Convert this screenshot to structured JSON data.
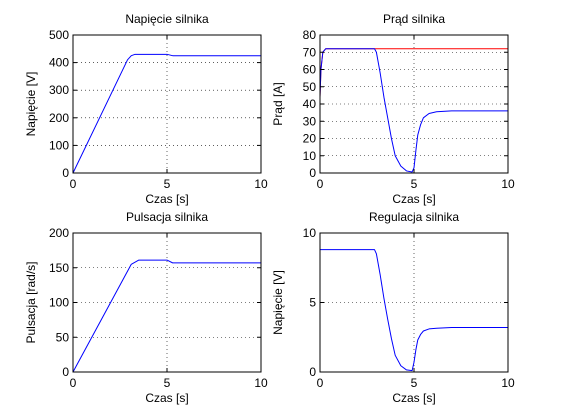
{
  "chart_data": [
    {
      "type": "line",
      "title": "Napięcie silnika",
      "xlabel": "Czas [s]",
      "ylabel": "Napięcie [V]",
      "xlim": [
        0,
        10
      ],
      "ylim": [
        0,
        500
      ],
      "xticks": [
        "0",
        "5",
        "10"
      ],
      "yticks": [
        "0",
        "100",
        "200",
        "300",
        "400",
        "500"
      ],
      "grid": true,
      "series": [
        {
          "color": "#0000ff",
          "x": [
            0,
            2.9,
            3.1,
            3.3,
            5.0,
            5.3,
            10
          ],
          "y": [
            0,
            410,
            425,
            430,
            430,
            425,
            425
          ]
        }
      ]
    },
    {
      "type": "line",
      "title": "Prąd silnika",
      "xlabel": "Czas [s]",
      "ylabel": "Prąd [A]",
      "xlim": [
        0,
        10
      ],
      "ylim": [
        0,
        80
      ],
      "xticks": [
        "0",
        "5",
        "10"
      ],
      "yticks": [
        "0",
        "10",
        "20",
        "30",
        "40",
        "50",
        "60",
        "70",
        "80"
      ],
      "grid": true,
      "series": [
        {
          "color": "#ff0000",
          "x": [
            0,
            0.05,
            0.15,
            0.3,
            10
          ],
          "y": [
            44,
            60,
            70,
            72,
            72
          ]
        },
        {
          "color": "#0000ff",
          "x": [
            0,
            0.05,
            0.15,
            0.3,
            2.9,
            3.0,
            3.2,
            3.4,
            3.6,
            3.8,
            4.0,
            4.3,
            4.6,
            4.9,
            5.0,
            5.1,
            5.2,
            5.35,
            5.5,
            5.8,
            6.2,
            7.0,
            10
          ],
          "y": [
            44,
            60,
            70,
            72,
            72,
            70,
            58,
            44,
            32,
            20,
            10,
            4,
            1.2,
            0.6,
            3,
            13,
            22,
            28,
            32,
            34.5,
            35.5,
            36,
            36
          ]
        }
      ]
    },
    {
      "type": "line",
      "title": "Pulsacja silnika",
      "xlabel": "Czas [s]",
      "ylabel": "Pulsacja [rad/s]",
      "xlim": [
        0,
        10
      ],
      "ylim": [
        0,
        200
      ],
      "xticks": [
        "0",
        "5",
        "10"
      ],
      "yticks": [
        "0",
        "50",
        "100",
        "150",
        "200"
      ],
      "grid": true,
      "series": [
        {
          "color": "#0000ff",
          "x": [
            0,
            3.1,
            3.5,
            5.0,
            5.3,
            10
          ],
          "y": [
            0,
            155,
            161,
            161,
            157,
            157
          ]
        }
      ]
    },
    {
      "type": "line",
      "title": "Regulacja silnika",
      "xlabel": "Czas [s]",
      "ylabel": "Napięcie [V]",
      "xlim": [
        0,
        10
      ],
      "ylim": [
        0,
        10
      ],
      "xticks": [
        "0",
        "5",
        "10"
      ],
      "yticks": [
        "0",
        "5",
        "10"
      ],
      "grid": true,
      "series": [
        {
          "color": "#0000ff",
          "x": [
            0,
            2.9,
            3.0,
            3.2,
            3.4,
            3.6,
            3.8,
            4.0,
            4.3,
            4.6,
            4.9,
            5.0,
            5.1,
            5.2,
            5.35,
            5.5,
            5.8,
            6.2,
            7.0,
            10
          ],
          "y": [
            8.8,
            8.8,
            8.5,
            7.0,
            5.3,
            3.8,
            2.4,
            1.2,
            0.45,
            0.15,
            0.1,
            0.7,
            1.6,
            2.3,
            2.7,
            2.95,
            3.1,
            3.15,
            3.2,
            3.2
          ]
        }
      ]
    }
  ]
}
